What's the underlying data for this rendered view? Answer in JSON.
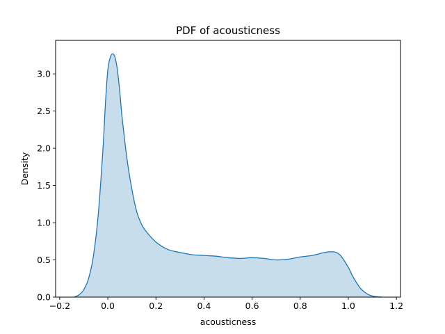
{
  "chart_data": {
    "type": "area",
    "title": "PDF of acousticness",
    "xlabel": "acousticness",
    "ylabel": "Density",
    "xlim": [
      -0.217,
      1.217
    ],
    "ylim": [
      0,
      3.45
    ],
    "xticks": [
      -0.2,
      0.0,
      0.2,
      0.4,
      0.6,
      0.8,
      1.0,
      1.2
    ],
    "xtick_labels": [
      "−0.2",
      "0.0",
      "0.2",
      "0.4",
      "0.6",
      "0.8",
      "1.0",
      "1.2"
    ],
    "yticks": [
      0.0,
      0.5,
      1.0,
      1.5,
      2.0,
      2.5,
      3.0
    ],
    "ytick_labels": [
      "0.0",
      "0.5",
      "1.0",
      "1.5",
      "2.0",
      "2.5",
      "3.0"
    ],
    "grid": false,
    "line_color": "#1f77b4",
    "fill_color": "#1f77b4",
    "fill_opacity": 0.25,
    "series": [
      {
        "x": [
          -0.14,
          -0.12,
          -0.1,
          -0.08,
          -0.06,
          -0.04,
          -0.02,
          -0.01,
          0.0,
          0.01,
          0.02,
          0.03,
          0.04,
          0.05,
          0.06,
          0.08,
          0.1,
          0.12,
          0.14,
          0.16,
          0.2,
          0.25,
          0.3,
          0.35,
          0.4,
          0.45,
          0.5,
          0.55,
          0.6,
          0.65,
          0.7,
          0.75,
          0.8,
          0.85,
          0.9,
          0.93,
          0.95,
          0.97,
          1.0,
          1.02,
          1.05,
          1.08,
          1.1,
          1.12,
          1.14
        ],
        "y": [
          0.0,
          0.03,
          0.1,
          0.25,
          0.55,
          1.1,
          2.0,
          2.6,
          3.05,
          3.22,
          3.27,
          3.22,
          3.05,
          2.75,
          2.4,
          1.85,
          1.45,
          1.15,
          0.98,
          0.88,
          0.74,
          0.64,
          0.6,
          0.57,
          0.56,
          0.55,
          0.53,
          0.52,
          0.53,
          0.52,
          0.5,
          0.51,
          0.54,
          0.56,
          0.6,
          0.61,
          0.6,
          0.55,
          0.4,
          0.27,
          0.12,
          0.04,
          0.015,
          0.004,
          0.0
        ]
      }
    ]
  }
}
